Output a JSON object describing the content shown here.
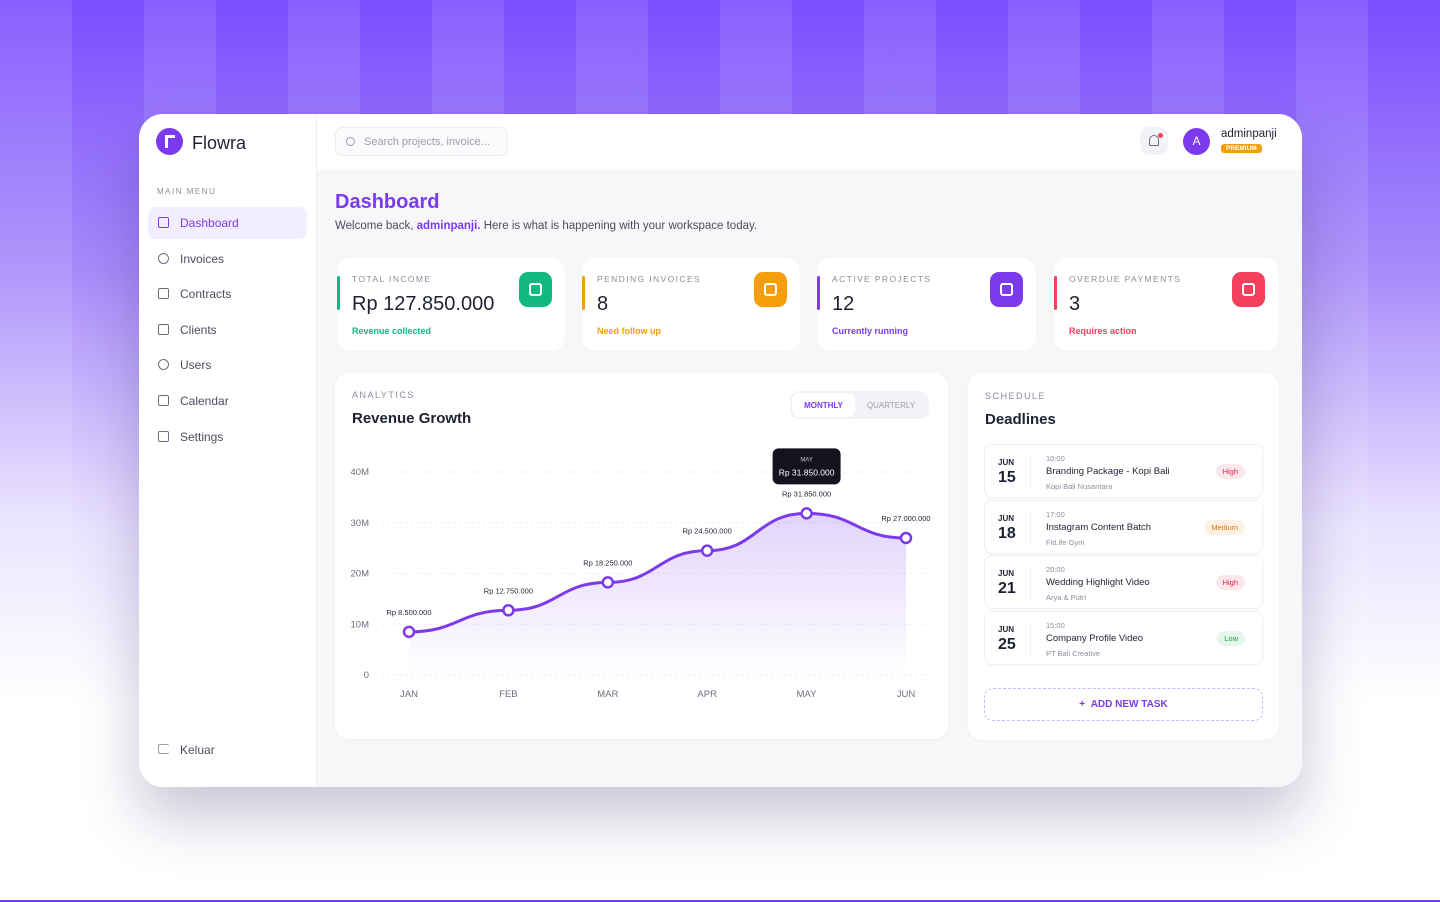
{
  "brand": "Flowra",
  "search_placeholder": "Search projects, invoice...",
  "user": {
    "initial": "A",
    "name": "adminpanji",
    "badge": "PREMIUM"
  },
  "menu_title": "MAIN MENU",
  "menu": [
    "Dashboard",
    "Invoices",
    "Contracts",
    "Clients",
    "Users",
    "Calendar",
    "Settings"
  ],
  "logout": "Keluar",
  "header": {
    "title": "Dashboard",
    "welcome_before": "Welcome back,",
    "welcome_name": "adminpanji.",
    "welcome_after": "Here is what is happening with your workspace today."
  },
  "stats": [
    {
      "label": "TOTAL INCOME",
      "value": "Rp 127.850.000",
      "note": "Revenue collected",
      "color": "#10b981"
    },
    {
      "label": "PENDING INVOICES",
      "value": "8",
      "note": "Need follow up",
      "color": "#f59e0b"
    },
    {
      "label": "ACTIVE PROJECTS",
      "value": "12",
      "note": "Currently running",
      "color": "#7c3aed"
    },
    {
      "label": "OVERDUE PAYMENTS",
      "value": "3",
      "note": "Requires action",
      "color": "#f43f5e"
    }
  ],
  "chart_data": {
    "type": "line",
    "kicker": "ANALYTICS",
    "title": "Revenue Growth",
    "tabs": [
      "MONTHLY",
      "QUARTERLY"
    ],
    "categories": [
      "JAN",
      "FEB",
      "MAR",
      "APR",
      "MAY",
      "JUN"
    ],
    "values": [
      8500000,
      12750000,
      18250000,
      24500000,
      31850000,
      27000000
    ],
    "value_labels": [
      "Rp 8.500.000",
      "Rp 12.750.000",
      "Rp 18.250.000",
      "Rp 24.500.000",
      "Rp 31.850.000",
      "Rp 27.000.000"
    ],
    "color": "#7c3aed",
    "ylim": [
      0,
      40000000
    ],
    "yticks": [
      0,
      {
        "value": 10000000,
        "label": "10M"
      },
      {
        "value": 20000000,
        "label": "20M"
      },
      {
        "value": 30000000,
        "label": "30M"
      },
      {
        "value": 40000000,
        "label": "40M"
      }
    ],
    "grid": true
  },
  "schedule": {
    "kicker": "SCHEDULE",
    "title": "Deadlines",
    "items": [
      {
        "month": "JUN",
        "day": "15",
        "time": "10:00",
        "title": "Branding Package - Kopi Bali",
        "client": "Kopi Bali Nusantara",
        "priority": "High",
        "color": "#e11d48"
      },
      {
        "month": "JUN",
        "day": "18",
        "time": "17:00",
        "title": "Instagram Content Batch",
        "client": "FitLife Gym",
        "priority": "Medium",
        "color": "#d97706"
      },
      {
        "month": "JUN",
        "day": "21",
        "time": "20:00",
        "title": "Wedding Highlight Video",
        "client": "Arya & Putri",
        "priority": "High",
        "color": "#e11d48"
      },
      {
        "month": "JUN",
        "day": "25",
        "time": "15:00",
        "title": "Company Profile Video",
        "client": "PT Bali Creative",
        "priority": "Low",
        "color": "#16a34a"
      }
    ],
    "add_task": "ADD NEW TASK"
  }
}
